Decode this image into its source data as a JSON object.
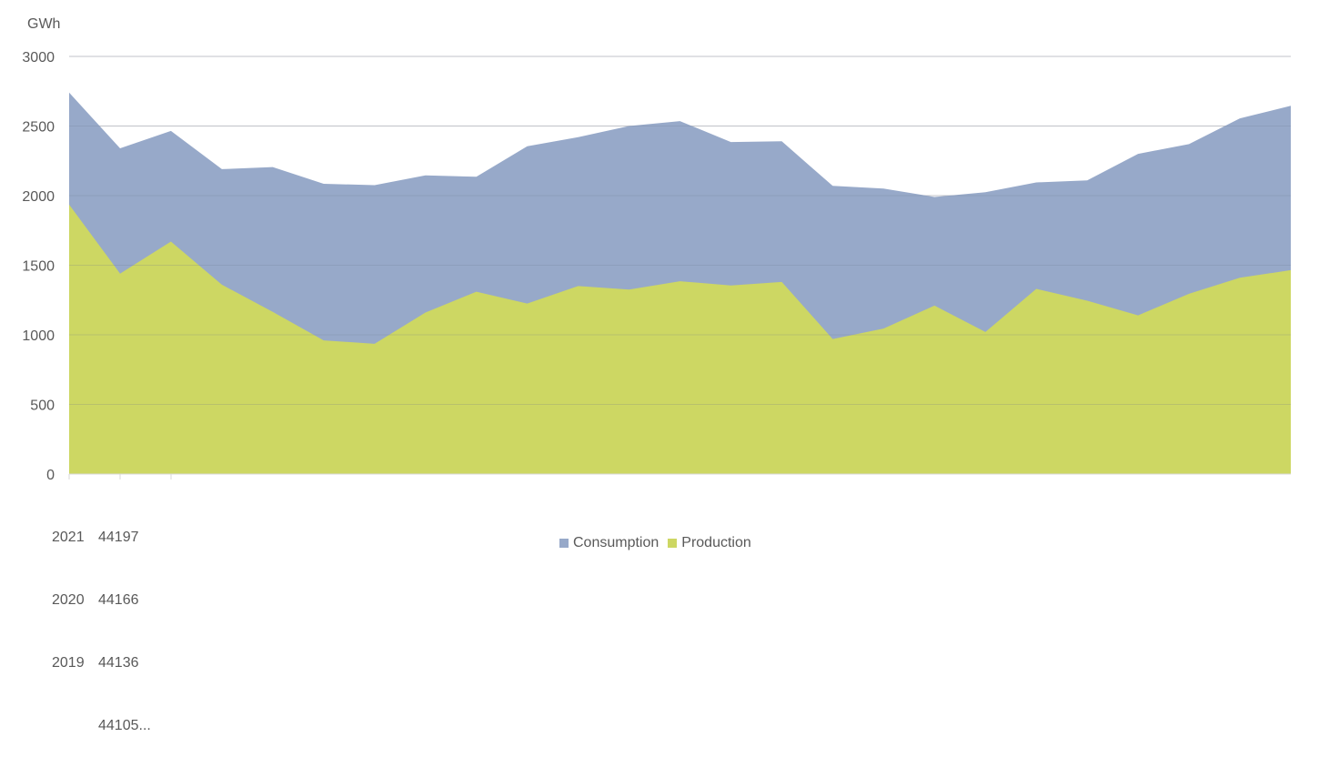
{
  "chart_data": {
    "type": "area",
    "unit_label": "GWh",
    "yticks": [
      "0",
      "500",
      "1000",
      "1500",
      "2000",
      "2500",
      "3000"
    ],
    "ylim": [
      0,
      3000
    ],
    "grid": true,
    "legend_position": "bottom",
    "category_labels": {
      "col1": [
        "2021",
        "2020",
        "2019"
      ],
      "col2": [
        "44197",
        "44166",
        "44136",
        "44105..."
      ]
    },
    "series": [
      {
        "name": "Consumption",
        "color": "#97a9c9",
        "values": [
          2740,
          2340,
          2465,
          2190,
          2205,
          2085,
          2075,
          2145,
          2135,
          2355,
          2420,
          2500,
          2535,
          2385,
          2390,
          2070,
          2050,
          1990,
          2025,
          2095,
          2110,
          2300,
          2370,
          2555,
          2645
        ]
      },
      {
        "name": "Production",
        "color": "#cdd763",
        "values": [
          1935,
          1440,
          1670,
          1360,
          1165,
          960,
          935,
          1160,
          1310,
          1225,
          1350,
          1325,
          1385,
          1355,
          1380,
          970,
          1045,
          1210,
          1020,
          1330,
          1245,
          1140,
          1295,
          1410,
          1465
        ]
      }
    ]
  }
}
